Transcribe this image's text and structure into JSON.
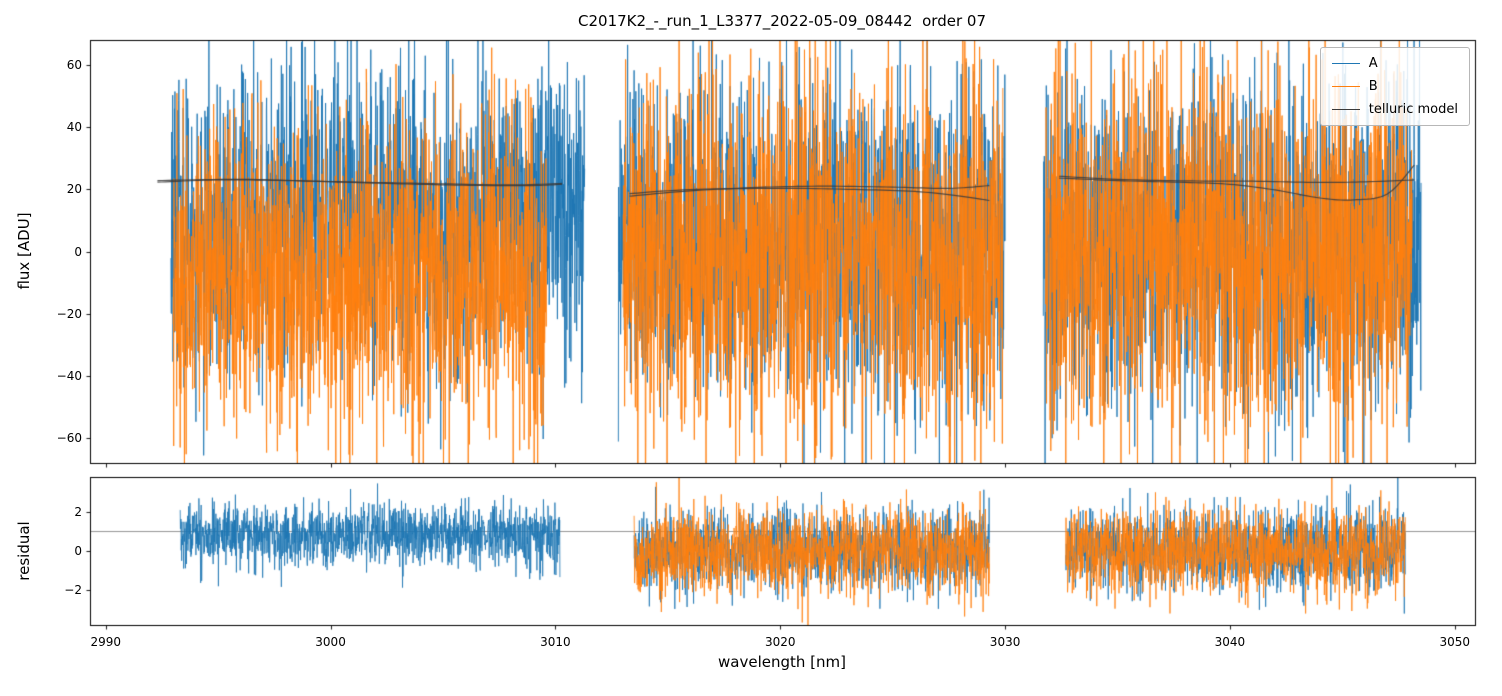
{
  "chart_data": {
    "type": "line",
    "title": "C2017K2_-_run_1_L3377_2022-05-09_08442  order 07",
    "xlabel": "wavelength [nm]",
    "ylabel_main": "flux [ADU]",
    "ylabel_residual": "residual",
    "xlim": [
      2989.3,
      3050.9
    ],
    "ylim_main": [
      -68,
      68
    ],
    "ylim_residual": [
      -3.8,
      3.8
    ],
    "xticks": [
      2990,
      3000,
      3010,
      3020,
      3030,
      3040,
      3050
    ],
    "yticks_main": [
      -60,
      -40,
      -20,
      0,
      20,
      40,
      60
    ],
    "yticks_residual": [
      -2,
      0,
      2
    ],
    "hline_residual": 1.0,
    "grid": false,
    "legend_position": "upper right",
    "colors": {
      "A": "#1f77b4",
      "B": "#ff7f0e",
      "telluric": "#3a3a3a"
    },
    "legend": [
      {
        "label": "A",
        "color": "#1f77b4"
      },
      {
        "label": "B",
        "color": "#ff7f0e"
      },
      {
        "label": "telluric model",
        "color": "#3a3a3a"
      }
    ],
    "noise_seed": 42,
    "points_per_nm": 90,
    "segments": [
      {
        "A": {
          "x": [
            2992.9,
            3011.3
          ],
          "mean": 10,
          "std": 24
        },
        "B": {
          "x": [
            2993.0,
            3009.6
          ],
          "mean": -8,
          "std": 25
        },
        "telluric": [
          [
            [
              2992.3,
              22.3
            ],
            [
              2995,
              23.0
            ],
            [
              2998,
              22.8
            ],
            [
              3001,
              22.2
            ],
            [
              3004,
              21.6
            ],
            [
              3007,
              21.2
            ],
            [
              3009,
              21.2
            ],
            [
              3010.3,
              21.6
            ]
          ],
          [
            [
              2992.3,
              22.8
            ],
            [
              2996,
              23.2
            ],
            [
              3000,
              22.5
            ],
            [
              3004,
              21.9
            ],
            [
              3008,
              21.4
            ],
            [
              3010.3,
              21.9
            ]
          ]
        ],
        "residual": {
          "A": {
            "x": [
              2993.3,
              3010.2
            ],
            "mean": 0.8,
            "std": 0.8
          }
        }
      },
      {
        "A": {
          "x": [
            3012.8,
            3030.0
          ],
          "mean": 2,
          "std": 27
        },
        "B": {
          "x": [
            3013.0,
            3029.9
          ],
          "mean": 0,
          "std": 30
        },
        "telluric": [
          [
            [
              3013.3,
              17.8
            ],
            [
              3016,
              19.5
            ],
            [
              3019,
              20.6
            ],
            [
              3022,
              21.0
            ],
            [
              3025,
              20.7
            ],
            [
              3027.5,
              20.3
            ],
            [
              3029.3,
              21.2
            ]
          ],
          [
            [
              3013.3,
              18.6
            ],
            [
              3016,
              19.9
            ],
            [
              3020,
              20.3
            ],
            [
              3023,
              20.0
            ],
            [
              3026,
              19.3
            ],
            [
              3028,
              17.8
            ],
            [
              3029.3,
              16.4
            ]
          ]
        ],
        "residual": {
          "A": {
            "x": [
              3013.5,
              3029.3
            ],
            "mean": 0.1,
            "std": 1.0
          },
          "B": {
            "x": [
              3013.5,
              3029.3
            ],
            "mean": -0.1,
            "std": 1.1
          }
        }
      },
      {
        "A": {
          "x": [
            3031.7,
            3048.5
          ],
          "mean": 2,
          "std": 27
        },
        "B": {
          "x": [
            3031.8,
            3048.1
          ],
          "mean": 0,
          "std": 30
        },
        "telluric": [
          [
            [
              3032.4,
              24.2
            ],
            [
              3035,
              23.2
            ],
            [
              3038,
              22.7
            ],
            [
              3041,
              22.6
            ],
            [
              3044,
              22.2
            ],
            [
              3046,
              22.4
            ],
            [
              3048.2,
              23.0
            ]
          ],
          [
            [
              3032.4,
              23.6
            ],
            [
              3035,
              22.8
            ],
            [
              3038,
              22.2
            ],
            [
              3040,
              21.6
            ],
            [
              3042,
              19.8
            ],
            [
              3044,
              17.2
            ],
            [
              3045.5,
              16.6
            ],
            [
              3047,
              18.5
            ],
            [
              3048.2,
              27.8
            ]
          ]
        ],
        "residual": {
          "A": {
            "x": [
              3032.7,
              3047.8
            ],
            "mean": 0.1,
            "std": 1.0
          },
          "B": {
            "x": [
              3032.7,
              3047.8
            ],
            "mean": -0.1,
            "std": 1.1
          }
        }
      }
    ]
  }
}
